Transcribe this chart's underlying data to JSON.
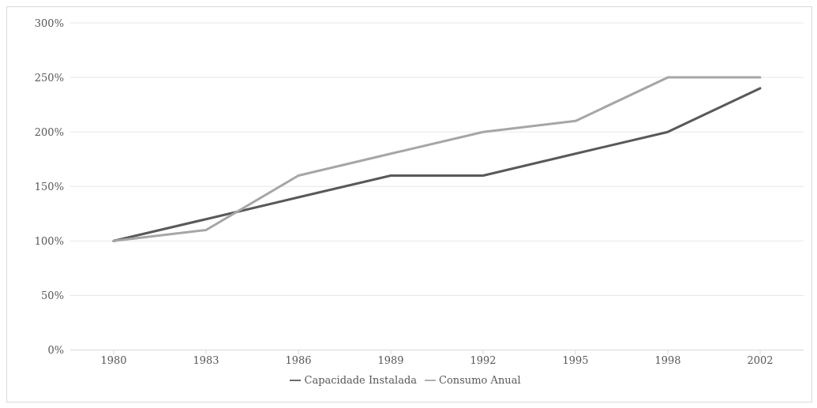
{
  "chart_data": {
    "type": "line",
    "categories": [
      "1980",
      "1983",
      "1986",
      "1989",
      "1992",
      "1995",
      "1998",
      "2002"
    ],
    "series": [
      {
        "name": "Capacidade Instalada",
        "color": "#595959",
        "values": [
          100,
          120,
          140,
          160,
          160,
          180,
          200,
          240
        ]
      },
      {
        "name": "Consumo Anual",
        "color": "#a6a6a6",
        "values": [
          100,
          110,
          160,
          180,
          200,
          210,
          250,
          250
        ]
      }
    ],
    "ylim": [
      0,
      300
    ],
    "yticks": [
      {
        "value": 0,
        "label": "0%"
      },
      {
        "value": 50,
        "label": "50%"
      },
      {
        "value": 100,
        "label": "100%"
      },
      {
        "value": 150,
        "label": "150%"
      },
      {
        "value": 200,
        "label": "200%"
      },
      {
        "value": 250,
        "label": "250%"
      },
      {
        "value": 300,
        "label": "300%"
      }
    ],
    "grid": "y",
    "legend": "bottom",
    "marker": "none",
    "line_style": "solid"
  }
}
